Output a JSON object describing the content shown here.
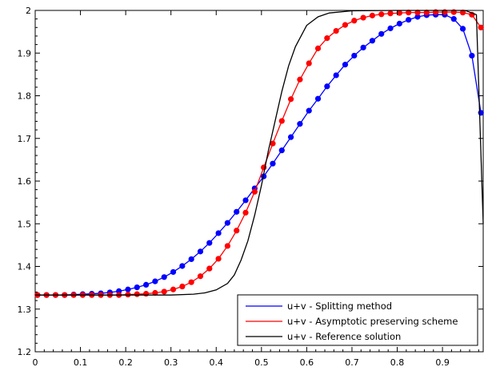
{
  "chart_data": {
    "type": "line",
    "title": "",
    "xlabel": "",
    "ylabel": "",
    "xlim": [
      0,
      0.99
    ],
    "ylim": [
      1.2,
      2.0
    ],
    "xticks": [
      "0",
      "0.1",
      "0.2",
      "0.3",
      "0.4",
      "0.5",
      "0.6",
      "0.7",
      "0.8",
      "0.9"
    ],
    "yticks": [
      "1.2",
      "1.3",
      "1.4",
      "1.5",
      "1.6",
      "1.7",
      "1.8",
      "1.9",
      "2"
    ],
    "grid": false,
    "legend_position": "bottom-right",
    "series": [
      {
        "name": "u+v - Splitting method",
        "color": "#0000ff",
        "markers": true,
        "x": [
          0.005,
          0.025,
          0.045,
          0.065,
          0.085,
          0.105,
          0.125,
          0.145,
          0.165,
          0.185,
          0.205,
          0.225,
          0.245,
          0.265,
          0.285,
          0.305,
          0.325,
          0.345,
          0.365,
          0.385,
          0.405,
          0.425,
          0.445,
          0.465,
          0.485,
          0.505,
          0.525,
          0.545,
          0.565,
          0.585,
          0.605,
          0.625,
          0.645,
          0.665,
          0.685,
          0.705,
          0.725,
          0.745,
          0.765,
          0.785,
          0.805,
          0.825,
          0.845,
          0.865,
          0.885,
          0.905,
          0.925,
          0.945,
          0.965,
          0.985
        ],
        "y": [
          1.333,
          1.333,
          1.333,
          1.333,
          1.334,
          1.335,
          1.336,
          1.337,
          1.339,
          1.342,
          1.346,
          1.351,
          1.357,
          1.365,
          1.375,
          1.387,
          1.401,
          1.417,
          1.435,
          1.455,
          1.478,
          1.502,
          1.528,
          1.555,
          1.583,
          1.611,
          1.641,
          1.672,
          1.703,
          1.734,
          1.765,
          1.793,
          1.822,
          1.848,
          1.873,
          1.894,
          1.913,
          1.929,
          1.945,
          1.958,
          1.969,
          1.978,
          1.985,
          1.989,
          1.99,
          1.99,
          1.98,
          1.957,
          1.894,
          1.76
        ]
      },
      {
        "name": "u+v - Asymptotic preserving scheme",
        "color": "#ff0000",
        "markers": true,
        "x": [
          0.005,
          0.025,
          0.045,
          0.065,
          0.085,
          0.105,
          0.125,
          0.145,
          0.165,
          0.185,
          0.205,
          0.225,
          0.245,
          0.265,
          0.285,
          0.305,
          0.325,
          0.345,
          0.365,
          0.385,
          0.405,
          0.425,
          0.445,
          0.465,
          0.485,
          0.505,
          0.525,
          0.545,
          0.565,
          0.585,
          0.605,
          0.625,
          0.645,
          0.665,
          0.685,
          0.705,
          0.725,
          0.745,
          0.765,
          0.785,
          0.805,
          0.825,
          0.845,
          0.865,
          0.885,
          0.905,
          0.925,
          0.945,
          0.965,
          0.985
        ],
        "y": [
          1.333,
          1.333,
          1.333,
          1.333,
          1.333,
          1.333,
          1.333,
          1.333,
          1.333,
          1.333,
          1.334,
          1.335,
          1.336,
          1.338,
          1.341,
          1.346,
          1.353,
          1.363,
          1.377,
          1.395,
          1.418,
          1.448,
          1.484,
          1.526,
          1.575,
          1.632,
          1.688,
          1.741,
          1.792,
          1.838,
          1.876,
          1.911,
          1.935,
          1.952,
          1.966,
          1.976,
          1.983,
          1.988,
          1.991,
          1.993,
          1.994,
          1.995,
          1.995,
          1.995,
          1.996,
          1.996,
          1.996,
          1.995,
          1.99,
          1.96
        ]
      },
      {
        "name": "u+v - Reference solution",
        "color": "#000000",
        "markers": false,
        "x": [
          0,
          0.3,
          0.35,
          0.375,
          0.4,
          0.425,
          0.44,
          0.455,
          0.47,
          0.485,
          0.5,
          0.515,
          0.53,
          0.545,
          0.56,
          0.575,
          0.6,
          0.625,
          0.65,
          0.7,
          0.8,
          0.95,
          0.975,
          0.99
        ],
        "y": [
          1.333,
          1.333,
          1.335,
          1.338,
          1.345,
          1.36,
          1.38,
          1.415,
          1.46,
          1.52,
          1.59,
          1.67,
          1.74,
          1.81,
          1.87,
          1.915,
          1.965,
          1.985,
          1.994,
          1.999,
          2.0,
          2.0,
          1.99,
          1.5
        ]
      }
    ]
  }
}
